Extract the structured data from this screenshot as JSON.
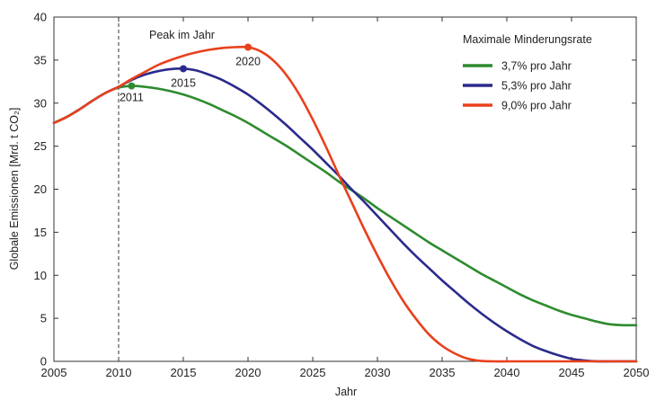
{
  "chart_data": {
    "type": "line",
    "title": "",
    "xlabel": "Jahr",
    "ylabel": "Globale Emissionen [Mrd. t CO₂]",
    "xlim": [
      2005,
      2050
    ],
    "ylim": [
      0,
      40
    ],
    "xticks": [
      2005,
      2010,
      2015,
      2020,
      2025,
      2030,
      2035,
      2040,
      2045,
      2050
    ],
    "yticks": [
      0,
      5,
      10,
      15,
      20,
      25,
      30,
      35,
      40
    ],
    "grid": false,
    "legend": {
      "title": "Maximale Minderungsrate",
      "position": "top-right"
    },
    "annotations": {
      "peak_label": "Peak im Jahr",
      "reference_line_x": 2010
    },
    "series": [
      {
        "name": "3,7% pro Jahr",
        "color": "#2e8b2e",
        "peak": {
          "x": 2011,
          "y": 32.0,
          "label": "2011"
        },
        "x": [
          2005,
          2006,
          2007,
          2008,
          2009,
          2010,
          2011,
          2012,
          2013,
          2014,
          2015,
          2016,
          2017,
          2018,
          2019,
          2020,
          2021,
          2022,
          2023,
          2024,
          2025,
          2026,
          2027,
          2028,
          2029,
          2030,
          2031,
          2032,
          2033,
          2034,
          2035,
          2036,
          2037,
          2038,
          2039,
          2040,
          2041,
          2042,
          2043,
          2044,
          2045,
          2046,
          2047,
          2048,
          2049,
          2050
        ],
        "y": [
          27.7,
          28.4,
          29.3,
          30.3,
          31.2,
          31.8,
          32.0,
          31.9,
          31.7,
          31.4,
          31.0,
          30.5,
          29.9,
          29.2,
          28.5,
          27.7,
          26.8,
          25.9,
          25.0,
          24.0,
          23.0,
          22.0,
          20.9,
          19.9,
          18.9,
          17.8,
          16.8,
          15.8,
          14.8,
          13.8,
          12.9,
          12.0,
          11.1,
          10.2,
          9.4,
          8.6,
          7.8,
          7.1,
          6.5,
          5.9,
          5.4,
          5.0,
          4.6,
          4.3,
          4.2,
          4.2
        ]
      },
      {
        "name": "5,3% pro Jahr",
        "color": "#2b2a8c",
        "peak": {
          "x": 2015,
          "y": 34.0,
          "label": "2015"
        },
        "x": [
          2005,
          2006,
          2007,
          2008,
          2009,
          2010,
          2011,
          2012,
          2013,
          2014,
          2015,
          2016,
          2017,
          2018,
          2019,
          2020,
          2021,
          2022,
          2023,
          2024,
          2025,
          2026,
          2027,
          2028,
          2029,
          2030,
          2031,
          2032,
          2033,
          2034,
          2035,
          2036,
          2037,
          2038,
          2039,
          2040,
          2041,
          2042,
          2043,
          2044,
          2045,
          2046,
          2047,
          2048,
          2049,
          2050
        ],
        "y": [
          27.7,
          28.4,
          29.3,
          30.3,
          31.2,
          31.9,
          32.7,
          33.3,
          33.7,
          33.95,
          34.0,
          33.8,
          33.3,
          32.7,
          31.9,
          31.0,
          29.9,
          28.7,
          27.4,
          26.0,
          24.6,
          23.1,
          21.6,
          20.0,
          18.5,
          16.9,
          15.3,
          13.7,
          12.2,
          10.8,
          9.4,
          8.1,
          6.8,
          5.6,
          4.5,
          3.5,
          2.6,
          1.8,
          1.2,
          0.7,
          0.3,
          0.1,
          0.0,
          0.0,
          0.0,
          0.0
        ]
      },
      {
        "name": "9,0% pro Jahr",
        "color": "#e8401c",
        "peak": {
          "x": 2020,
          "y": 36.5,
          "label": "2020"
        },
        "x": [
          2005,
          2006,
          2007,
          2008,
          2009,
          2010,
          2011,
          2012,
          2013,
          2014,
          2015,
          2016,
          2017,
          2018,
          2019,
          2020,
          2021,
          2022,
          2023,
          2024,
          2025,
          2026,
          2027,
          2028,
          2029,
          2030,
          2031,
          2032,
          2033,
          2034,
          2035,
          2036,
          2037,
          2038,
          2039,
          2040,
          2041,
          2042,
          2043,
          2044,
          2045,
          2046,
          2047,
          2048,
          2049,
          2050
        ],
        "y": [
          27.7,
          28.4,
          29.3,
          30.3,
          31.2,
          31.9,
          32.8,
          33.6,
          34.4,
          35.0,
          35.5,
          35.9,
          36.2,
          36.4,
          36.5,
          36.5,
          36.0,
          34.9,
          33.2,
          30.9,
          28.1,
          25.0,
          21.7,
          18.5,
          15.3,
          12.3,
          9.5,
          7.0,
          4.9,
          3.1,
          1.8,
          0.9,
          0.3,
          0.05,
          0.0,
          0.0,
          0.0,
          0.0,
          0.0,
          0.0,
          0.0,
          0.0,
          0.0,
          0.0,
          0.0,
          0.0
        ]
      }
    ]
  }
}
